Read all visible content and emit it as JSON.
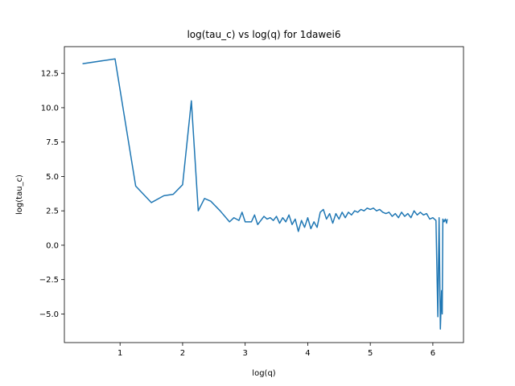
{
  "chart_data": {
    "type": "line",
    "title": "log(tau_c) vs log(q) for 1dawei6",
    "x_label": "log(q)",
    "y_label": "log(tau_c)",
    "color": "#1f77b4",
    "grid": false,
    "x": [
      0.4,
      0.92,
      1.25,
      1.5,
      1.7,
      1.85,
      2.0,
      2.14,
      2.25,
      2.35,
      2.45,
      2.6,
      2.75,
      2.82,
      2.9,
      2.95,
      3.0,
      3.1,
      3.15,
      3.2,
      3.3,
      3.35,
      3.4,
      3.45,
      3.5,
      3.55,
      3.6,
      3.65,
      3.7,
      3.75,
      3.8,
      3.85,
      3.9,
      3.95,
      4.0,
      4.05,
      4.1,
      4.15,
      4.2,
      4.25,
      4.3,
      4.35,
      4.4,
      4.45,
      4.5,
      4.55,
      4.6,
      4.65,
      4.7,
      4.75,
      4.8,
      4.85,
      4.9,
      4.95,
      5.0,
      5.05,
      5.1,
      5.15,
      5.2,
      5.25,
      5.3,
      5.35,
      5.4,
      5.45,
      5.5,
      5.55,
      5.6,
      5.65,
      5.7,
      5.75,
      5.8,
      5.85,
      5.9,
      5.95,
      6.0,
      6.05,
      6.08,
      6.1,
      6.12,
      6.14,
      6.15,
      6.16,
      6.18,
      6.2,
      6.22,
      6.23
    ],
    "values": [
      13.2,
      13.55,
      4.3,
      3.1,
      3.6,
      3.7,
      4.4,
      10.5,
      2.5,
      3.4,
      3.2,
      2.5,
      1.7,
      2.0,
      1.8,
      2.4,
      1.7,
      1.7,
      2.2,
      1.5,
      2.1,
      1.9,
      2.0,
      1.8,
      2.1,
      1.6,
      2.0,
      1.7,
      2.2,
      1.5,
      1.9,
      1.0,
      1.8,
      1.3,
      2.0,
      1.2,
      1.7,
      1.3,
      2.4,
      2.6,
      1.9,
      2.3,
      1.6,
      2.3,
      1.9,
      2.4,
      2.0,
      2.4,
      2.2,
      2.5,
      2.4,
      2.6,
      2.5,
      2.7,
      2.6,
      2.7,
      2.5,
      2.6,
      2.4,
      2.3,
      2.4,
      2.1,
      2.3,
      2.0,
      2.4,
      2.1,
      2.3,
      2.0,
      2.5,
      2.2,
      2.4,
      2.2,
      2.3,
      1.9,
      2.0,
      1.8,
      -5.2,
      2.0,
      -6.1,
      -3.3,
      -5.0,
      1.9,
      1.7,
      1.9,
      1.6,
      1.9
    ],
    "xlim": [
      0.11,
      6.49
    ],
    "ylim": [
      -7.08,
      14.44
    ],
    "xticks": [
      1,
      2,
      3,
      4,
      5,
      6
    ],
    "yticks": [
      {
        "value": -5,
        "label": "−5.0"
      },
      {
        "value": -2.5,
        "label": "−2.5"
      },
      {
        "value": 0,
        "label": "0.0"
      },
      2.5,
      {
        "value": 5,
        "label": "5.0"
      },
      7.5,
      {
        "value": 10,
        "label": "10.0"
      },
      12.5
    ]
  }
}
